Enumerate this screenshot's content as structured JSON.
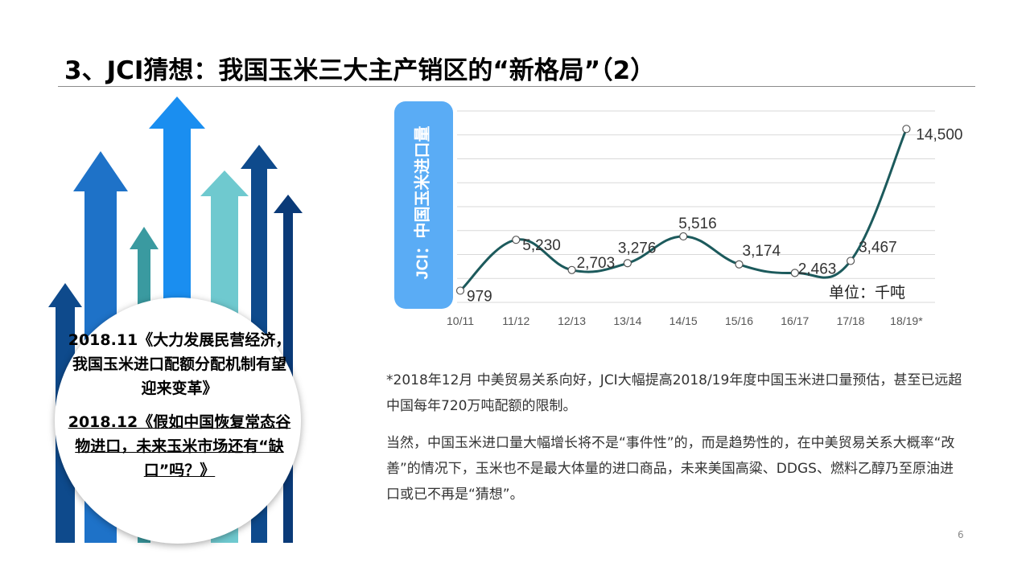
{
  "slide": {
    "title": "3、JCI猜想：我国玉米三大主产销区的“新格局”（2）",
    "page_number": "6"
  },
  "callout": {
    "item1": "2018.11《大力发展民营经济，我国玉米进口配额分配机制有望迎来变革》",
    "item2": "2018.12《假如中国恢复常态谷物进口，未来玉米市场还有“缺口”吗？》"
  },
  "notes": {
    "para1": "*2018年12月 中美贸易关系向好，JCI大幅提高2018/19年度中国玉米进口量预估，甚至已远超中国每年720万吨配额的限制。",
    "para2": "当然，中国玉米进口量大幅增长将不是“事件性”的，而是趋势性的，在中美贸易关系大概率“改善”的情况下，玉米也不是最大体量的进口商品，未来美国高粱、DDGS、燃料乙醇乃至原油进口或已不再是“猜想”。"
  },
  "colors": {
    "line": "#1c5a5c",
    "axis_box": "#5aacf5",
    "arrow_dark": "#0e4a8c",
    "arrow_mid": "#1e72c8",
    "arrow_bright": "#1a8ef0",
    "arrow_teal": "#3a9aa0",
    "arrow_light_teal": "#6fc9cf"
  },
  "chart_data": {
    "type": "line",
    "ylabel": "JCI：中国玉米进口量",
    "unit": "单位：千吨",
    "categories": [
      "10/11",
      "11/12",
      "12/13",
      "13/14",
      "14/15",
      "15/16",
      "16/17",
      "17/18",
      "18/19*"
    ],
    "values": [
      979,
      5230,
      2703,
      3276,
      5516,
      3174,
      2463,
      3467,
      14500
    ],
    "value_labels": [
      "979",
      "5,230",
      "2,703",
      "3,276",
      "5,516",
      "3,174",
      "2,463",
      "3,467",
      "14,500"
    ],
    "ylim": [
      0,
      16000
    ],
    "grid": true,
    "legend": "none"
  }
}
